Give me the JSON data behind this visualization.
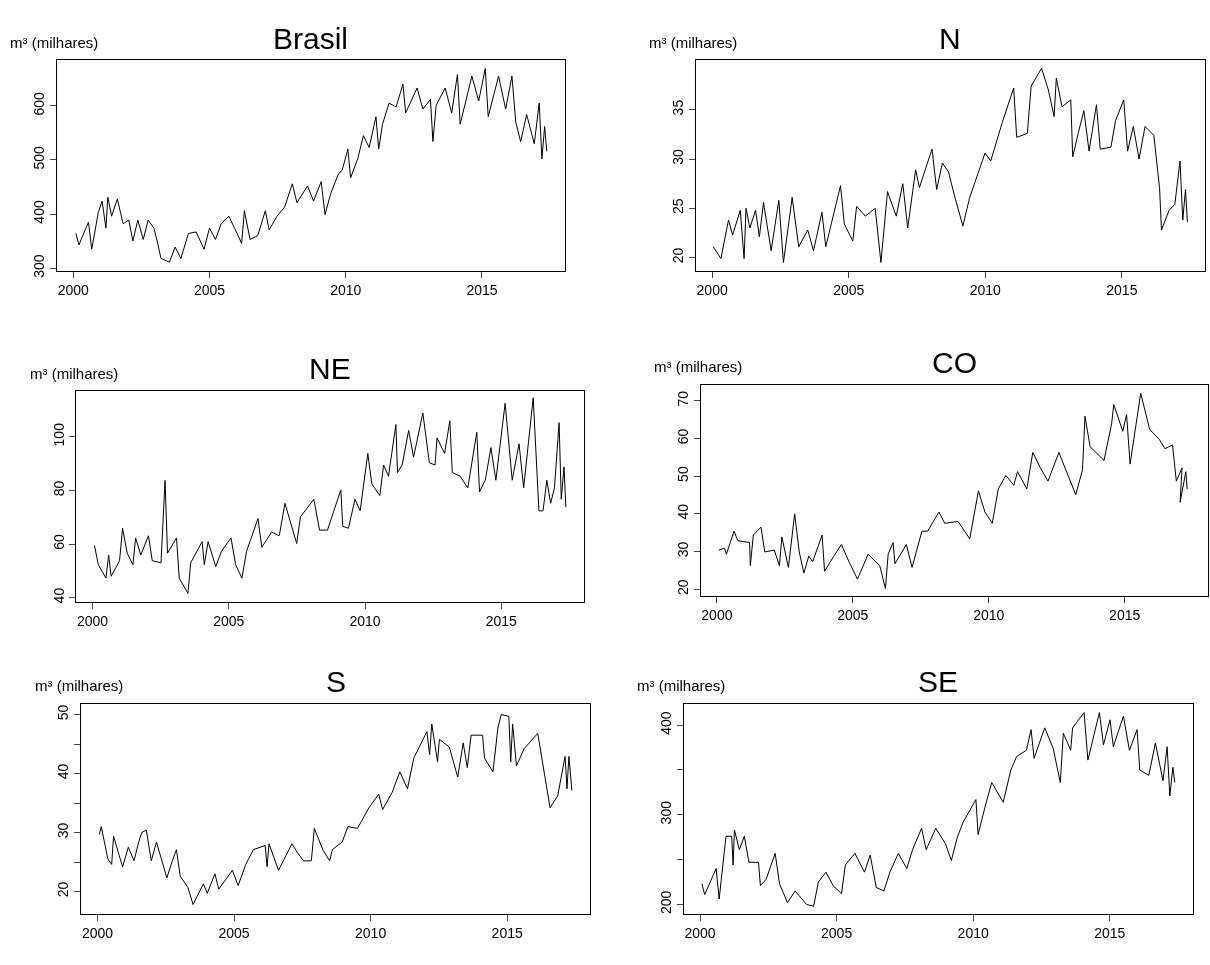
{
  "chart_data": [
    {
      "type": "line",
      "title": "Brasil",
      "ylabel": "m³ (milhares)",
      "color": "#000000",
      "xlim": [
        1999.4,
        2018.05
      ],
      "xticks": [
        2000,
        2005,
        2010,
        2015
      ],
      "ylim": [
        294,
        684
      ],
      "yticks": [
        300,
        400,
        500,
        600
      ],
      "x": [
        2000.1,
        2000.21,
        2000.56,
        2000.68,
        2000.92,
        2001.06,
        2001.2,
        2001.27,
        2001.41,
        2001.62,
        2001.83,
        2002.04,
        2002.19,
        2002.37,
        2002.57,
        2002.75,
        2002.96,
        2003.1,
        2003.22,
        2003.53,
        2003.74,
        2003.95,
        2004.23,
        2004.51,
        2004.8,
        2005.0,
        2005.22,
        2005.43,
        2005.71,
        2005.92,
        2006.18,
        2006.28,
        2006.49,
        2006.77,
        2007.05,
        2007.19,
        2007.48,
        2007.76,
        2008.04,
        2008.21,
        2008.6,
        2008.82,
        2009.1,
        2009.24,
        2009.45,
        2009.73,
        2009.87,
        2010.08,
        2010.18,
        2010.44,
        2010.65,
        2010.86,
        2011.11,
        2011.21,
        2011.35,
        2011.59,
        2011.85,
        2012.1,
        2012.2,
        2012.62,
        2012.83,
        2013.11,
        2013.2,
        2013.32,
        2013.65,
        2013.89,
        2014.1,
        2014.2,
        2014.63,
        2014.88,
        2015.12,
        2015.23,
        2015.61,
        2015.87,
        2016.1,
        2016.24,
        2016.42,
        2016.64,
        2016.92,
        2017.1,
        2017.2,
        2017.3,
        2017.38
      ],
      "values": [
        364,
        343,
        385,
        335,
        403,
        424,
        374,
        431,
        396,
        428,
        382,
        389,
        350,
        389,
        353,
        389,
        374,
        346,
        318,
        311,
        339,
        318,
        364,
        367,
        335,
        374,
        353,
        382,
        396,
        374,
        346,
        406,
        353,
        360,
        406,
        371,
        396,
        413,
        456,
        421,
        452,
        424,
        460,
        399,
        438,
        474,
        481,
        520,
        467,
        502,
        545,
        523,
        580,
        520,
        566,
        605,
        598,
        640,
        587,
        633,
        594,
        612,
        534,
        601,
        633,
        587,
        658,
        566,
        655,
        609,
        669,
        580,
        655,
        594,
        655,
        570,
        534,
        584,
        530,
        605,
        502,
        562,
        516
      ]
    },
    {
      "type": "line",
      "title": "N",
      "ylabel": "m³ (milhares)",
      "color": "#000000",
      "xlim": [
        1999.4,
        2018.05
      ],
      "xticks": [
        2000,
        2005,
        2010,
        2015
      ],
      "ylim": [
        18.6,
        40.0
      ],
      "yticks": [
        20,
        25,
        30,
        35
      ],
      "x": [
        2000.04,
        2000.32,
        2000.6,
        2000.75,
        2001.03,
        2001.17,
        2001.24,
        2001.38,
        2001.59,
        2001.73,
        2001.88,
        2002.16,
        2002.44,
        2002.61,
        2002.93,
        2003.17,
        2003.5,
        2003.71,
        2004.02,
        2004.16,
        2004.7,
        2004.84,
        2005.15,
        2005.29,
        2005.61,
        2005.97,
        2006.18,
        2006.42,
        2006.74,
        2006.98,
        2007.16,
        2007.45,
        2007.59,
        2007.8,
        2008.05,
        2008.22,
        2008.43,
        2008.65,
        2008.9,
        2009.18,
        2009.42,
        2009.63,
        2009.99,
        2010.2,
        2010.62,
        2011.04,
        2011.15,
        2011.54,
        2011.68,
        2012.06,
        2012.31,
        2012.52,
        2012.6,
        2012.81,
        2013.13,
        2013.2,
        2013.41,
        2013.61,
        2013.8,
        2014.07,
        2014.21,
        2014.6,
        2014.77,
        2015.07,
        2015.21,
        2015.42,
        2015.63,
        2015.85,
        2016.17,
        2016.38,
        2016.45,
        2016.73,
        2016.94,
        2017.13,
        2017.23,
        2017.33,
        2017.4
      ],
      "values": [
        21.1,
        19.9,
        23.8,
        22.3,
        24.8,
        19.9,
        25.0,
        23.0,
        24.8,
        22.1,
        25.6,
        20.7,
        25.8,
        19.5,
        26.1,
        21.1,
        22.8,
        20.7,
        24.6,
        21.1,
        27.3,
        23.4,
        21.7,
        25.2,
        24.2,
        25.0,
        19.5,
        26.7,
        24.2,
        27.5,
        23.0,
        28.9,
        27.1,
        28.9,
        31.0,
        26.9,
        29.6,
        28.7,
        26.0,
        23.2,
        26.0,
        27.7,
        30.6,
        29.8,
        33.7,
        37.2,
        32.2,
        32.6,
        37.4,
        39.2,
        37.0,
        34.3,
        38.2,
        35.3,
        36.0,
        30.2,
        32.7,
        34.9,
        30.8,
        35.5,
        31.0,
        31.2,
        33.9,
        36.0,
        30.8,
        33.3,
        30.0,
        33.3,
        32.4,
        27.1,
        22.8,
        24.8,
        25.4,
        29.8,
        23.8,
        26.9,
        23.6
      ]
    },
    {
      "type": "line",
      "title": "NE",
      "ylabel": "m³ (milhares)",
      "color": "#000000",
      "xlim": [
        1999.4,
        2018.05
      ],
      "xticks": [
        2000,
        2005,
        2010,
        2015
      ],
      "ylim": [
        38.3,
        117
      ],
      "yticks": [
        40,
        60,
        80,
        100
      ],
      "x": [
        2000.07,
        2000.21,
        2000.49,
        2000.59,
        2000.68,
        2000.99,
        2001.1,
        2001.27,
        2001.48,
        2001.58,
        2001.77,
        2002.05,
        2002.19,
        2002.51,
        2002.66,
        2002.75,
        2003.08,
        2003.18,
        2003.5,
        2003.6,
        2004.02,
        2004.1,
        2004.24,
        2004.52,
        2004.73,
        2005.08,
        2005.25,
        2005.48,
        2005.65,
        2006.07,
        2006.21,
        2006.57,
        2006.85,
        2007.06,
        2007.49,
        2007.63,
        2008.12,
        2008.33,
        2008.62,
        2009.11,
        2009.18,
        2009.39,
        2009.63,
        2009.82,
        2010.1,
        2010.25,
        2010.54,
        2010.68,
        2010.86,
        2011.13,
        2011.19,
        2011.36,
        2011.6,
        2011.78,
        2012.12,
        2012.36,
        2012.57,
        2012.64,
        2012.92,
        2013.11,
        2013.2,
        2013.49,
        2013.77,
        2014.1,
        2014.2,
        2014.41,
        2014.62,
        2014.8,
        2015.14,
        2015.4,
        2015.65,
        2015.82,
        2016.17,
        2016.38,
        2016.53,
        2016.67,
        2016.81,
        2016.95,
        2017.12,
        2017.2,
        2017.3,
        2017.37
      ],
      "values": [
        59.5,
        52.3,
        47.3,
        55.9,
        48.0,
        53.8,
        65.9,
        56.6,
        52.3,
        62.3,
        55.9,
        63.1,
        53.8,
        53.0,
        83.8,
        56.6,
        62.3,
        47.3,
        41.6,
        53.0,
        60.9,
        52.3,
        60.9,
        51.6,
        57.3,
        62.3,
        52.3,
        47.3,
        57.3,
        69.5,
        58.8,
        64.5,
        63.1,
        75.2,
        60.2,
        70.2,
        76.7,
        65.2,
        65.2,
        80.2,
        66.6,
        65.9,
        76.7,
        72.4,
        93.8,
        82.4,
        78.1,
        89.5,
        85.3,
        104.6,
        86.7,
        89.5,
        102.4,
        92.4,
        108.9,
        90.3,
        89.5,
        99.6,
        93.8,
        106.0,
        86.7,
        85.3,
        81.0,
        101.7,
        79.5,
        83.8,
        96.0,
        83.8,
        112.5,
        83.8,
        97.4,
        81.0,
        114.6,
        72.4,
        72.4,
        83.8,
        75.2,
        81.0,
        105.3,
        76.7,
        88.8,
        73.8
      ]
    },
    {
      "type": "line",
      "title": "CO",
      "ylabel": "m³ (milhares)",
      "color": "#000000",
      "xlim": [
        1999.4,
        2018.05
      ],
      "xticks": [
        2000,
        2005,
        2010,
        2015
      ],
      "ylim": [
        18.1,
        74.3
      ],
      "yticks": [
        20,
        30,
        40,
        50,
        60,
        70
      ],
      "x": [
        2000.07,
        2000.28,
        2000.35,
        2000.63,
        2000.77,
        2001.2,
        2001.23,
        2001.34,
        2001.62,
        2001.76,
        2002.11,
        2002.3,
        2002.39,
        2002.63,
        2002.86,
        2003.03,
        2003.2,
        2003.38,
        2003.52,
        2003.87,
        2003.96,
        2004.3,
        2004.58,
        2004.86,
        2005.17,
        2005.56,
        2005.99,
        2006.2,
        2006.3,
        2006.48,
        2006.55,
        2006.97,
        2007.18,
        2007.54,
        2007.75,
        2008.17,
        2008.38,
        2008.87,
        2009.3,
        2009.62,
        2009.86,
        2010.13,
        2010.35,
        2010.63,
        2010.92,
        2011.06,
        2011.4,
        2011.62,
        2011.9,
        2012.18,
        2012.58,
        2013.2,
        2013.45,
        2013.54,
        2013.73,
        2014.24,
        2014.52,
        2014.6,
        2014.93,
        2015.07,
        2015.2,
        2015.59,
        2015.92,
        2016.27,
        2016.48,
        2016.76,
        2016.9,
        2017.11,
        2017.04,
        2017.25,
        2017.3
      ],
      "values": [
        30.4,
        30.9,
        29.3,
        35.4,
        32.9,
        32.4,
        26.3,
        34.4,
        36.5,
        29.9,
        30.4,
        26.3,
        33.9,
        25.8,
        40.0,
        29.9,
        24.3,
        28.8,
        27.3,
        34.4,
        24.8,
        28.8,
        31.9,
        27.3,
        22.7,
        29.3,
        26.3,
        20.2,
        29.3,
        32.4,
        26.8,
        31.9,
        25.8,
        35.4,
        35.4,
        40.5,
        37.5,
        38.0,
        33.4,
        46.1,
        40.5,
        37.5,
        46.6,
        50.2,
        47.6,
        51.2,
        46.6,
        56.3,
        52.2,
        48.7,
        56.3,
        45.1,
        51.7,
        65.9,
        57.8,
        54.2,
        63.9,
        69.0,
        61.9,
        66.4,
        53.2,
        72.0,
        62.4,
        59.8,
        57.3,
        58.3,
        48.7,
        52.2,
        43.1,
        51.2,
        46.6
      ]
    },
    {
      "type": "line",
      "title": "S",
      "ylabel": "m³ (milhares)",
      "color": "#000000",
      "xlim": [
        1999.4,
        2018.05
      ],
      "xticks": [
        2000,
        2005,
        2010,
        2015
      ],
      "ylim": [
        16.2,
        51.8
      ],
      "yticks": [
        20,
        {
          "value": 25,
          "label": null
        },
        30,
        {
          "value": 35,
          "label": null
        },
        40,
        {
          "value": 45,
          "label": null
        },
        50
      ],
      "x": [
        2000.07,
        2000.14,
        2000.38,
        2000.52,
        2000.59,
        2000.77,
        2000.92,
        2001.13,
        2001.34,
        2001.51,
        2001.62,
        2001.79,
        2001.97,
        2002.16,
        2002.54,
        2002.74,
        2002.89,
        2003.03,
        2003.31,
        2003.5,
        2003.88,
        2004.02,
        2004.3,
        2004.44,
        2004.94,
        2005.15,
        2005.43,
        2005.71,
        2006.14,
        2006.21,
        2006.28,
        2006.63,
        2007.12,
        2007.33,
        2007.55,
        2007.83,
        2007.94,
        2008.25,
        2008.5,
        2008.6,
        2008.96,
        2009.17,
        2009.52,
        2009.94,
        2010.3,
        2010.44,
        2010.79,
        2011.07,
        2011.35,
        2011.58,
        2012.06,
        2012.16,
        2012.24,
        2012.45,
        2012.52,
        2012.88,
        2013.19,
        2013.39,
        2013.54,
        2013.68,
        2014.1,
        2014.17,
        2014.48,
        2014.66,
        2014.78,
        2015.06,
        2015.13,
        2015.2,
        2015.34,
        2015.62,
        2016.12,
        2016.57,
        2016.85,
        2017.12,
        2017.19,
        2017.26,
        2017.37
      ],
      "values": [
        29.7,
        31.0,
        25.5,
        24.6,
        29.4,
        26.5,
        24.2,
        27.5,
        25.2,
        28.4,
        30.0,
        30.4,
        25.2,
        28.4,
        22.3,
        25.2,
        27.1,
        22.6,
        20.7,
        17.8,
        21.3,
        19.7,
        23.0,
        20.4,
        23.6,
        21.0,
        24.6,
        27.1,
        27.8,
        24.2,
        28.1,
        23.6,
        28.1,
        26.5,
        25.2,
        25.2,
        30.7,
        27.1,
        25.2,
        27.1,
        28.4,
        31.0,
        30.7,
        34.2,
        36.5,
        33.9,
        36.8,
        40.3,
        37.4,
        42.6,
        47.1,
        43.2,
        48.4,
        42.0,
        45.8,
        44.5,
        39.4,
        45.2,
        41.0,
        46.5,
        46.5,
        42.6,
        40.3,
        47.7,
        50.0,
        49.7,
        42.0,
        48.4,
        41.3,
        44.2,
        46.8,
        34.2,
        36.2,
        42.9,
        37.4,
        42.9,
        37.1
      ]
    },
    {
      "type": "line",
      "title": "SE",
      "ylabel": "m³ (milhares)",
      "color": "#000000",
      "xlim": [
        1999.4,
        2018.05
      ],
      "xticks": [
        2000,
        2005,
        2010,
        2015
      ],
      "ylim": [
        189.4,
        423.7
      ],
      "yticks": [
        200,
        {
          "value": 250,
          "label": null
        },
        300,
        {
          "value": 350,
          "label": null
        },
        400
      ],
      "x": [
        2000.07,
        2000.17,
        2000.59,
        2000.7,
        2000.95,
        2001.16,
        2001.21,
        2001.26,
        2001.44,
        2001.62,
        2001.79,
        2002.14,
        2002.21,
        2002.42,
        2002.75,
        2002.91,
        2003.2,
        2003.48,
        2003.9,
        2004.16,
        2004.33,
        2004.61,
        2004.87,
        2005.18,
        2005.32,
        2005.67,
        2006.02,
        2006.23,
        2006.45,
        2006.73,
        2006.95,
        2007.26,
        2007.57,
        2007.78,
        2008.11,
        2008.28,
        2008.63,
        2008.98,
        2009.2,
        2009.41,
        2009.62,
        2010.1,
        2010.18,
        2010.46,
        2010.68,
        2011.1,
        2011.38,
        2011.59,
        2011.95,
        2012.12,
        2012.23,
        2012.62,
        2012.93,
        2013.19,
        2013.3,
        2013.57,
        2013.64,
        2014.06,
        2014.2,
        2014.62,
        2014.77,
        2015.01,
        2015.13,
        2015.5,
        2015.72,
        2016.0,
        2016.1,
        2016.43,
        2016.67,
        2016.95,
        2017.1,
        2017.2,
        2017.31,
        2017.38
      ],
      "values": [
        223,
        211,
        240,
        206,
        276,
        276,
        244,
        283,
        261,
        276,
        247,
        247,
        221,
        228,
        257,
        223,
        202,
        215,
        200,
        198,
        225,
        236,
        221,
        212,
        244,
        257,
        236,
        255,
        219,
        215,
        236,
        257,
        240,
        261,
        285,
        261,
        285,
        268,
        249,
        274,
        291,
        317,
        278,
        312,
        336,
        314,
        350,
        365,
        372,
        395,
        363,
        397,
        374,
        336,
        391,
        372,
        397,
        414,
        361,
        414,
        378,
        406,
        376,
        410,
        372,
        395,
        350,
        344,
        380,
        338,
        376,
        321,
        353,
        336
      ]
    }
  ]
}
